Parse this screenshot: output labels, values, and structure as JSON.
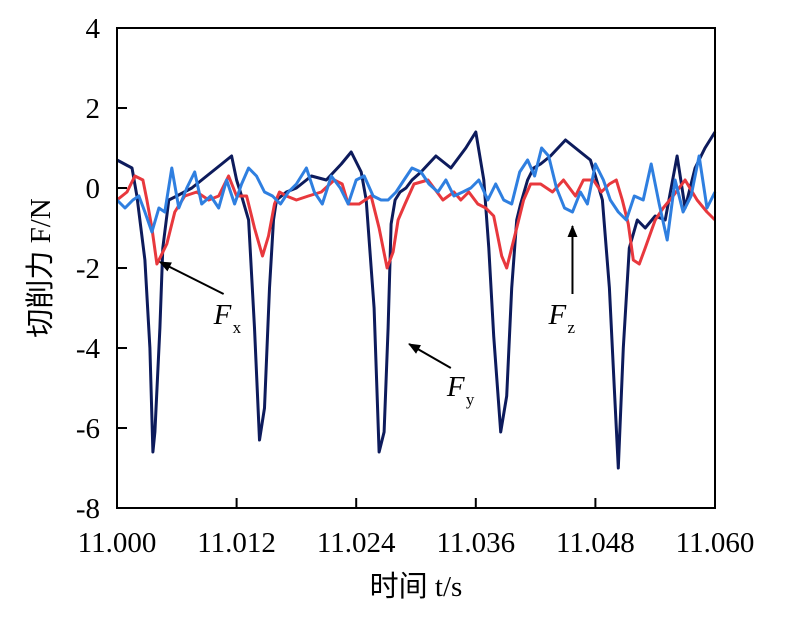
{
  "chart_data": {
    "type": "line",
    "xlabel": "时间 t/s",
    "ylabel": "切削力 F/N",
    "xlim": [
      11.0,
      11.06
    ],
    "ylim": [
      -8,
      4
    ],
    "x_ticks": [
      "11.000",
      "11.012",
      "11.024",
      "11.036",
      "11.048",
      "11.060"
    ],
    "y_ticks": [
      "4",
      "2",
      "0",
      "-2",
      "-4",
      "-6",
      "-8"
    ],
    "grid": false,
    "series": [
      {
        "name": "Fy",
        "color": "#0d1b5c",
        "x": [
          11.0,
          11.0015,
          11.002,
          11.0028,
          11.0033,
          11.0036,
          11.0038,
          11.0043,
          11.0046,
          11.0052,
          11.006,
          11.0075,
          11.009,
          11.0105,
          11.0115,
          11.012,
          11.0125,
          11.0132,
          11.0138,
          11.0143,
          11.0148,
          11.0153,
          11.0157,
          11.016,
          11.0165,
          11.017,
          11.018,
          11.0195,
          11.021,
          11.0225,
          11.0235,
          11.0245,
          11.025,
          11.0258,
          11.0263,
          11.0268,
          11.0272,
          11.0275,
          11.0279,
          11.0284,
          11.029,
          11.0296,
          11.0305,
          11.032,
          11.0335,
          11.035,
          11.036,
          11.0368,
          11.0373,
          11.0378,
          11.0385,
          11.0391,
          11.0396,
          11.0401,
          11.0405,
          11.0412,
          11.0418,
          11.0425,
          11.0435,
          11.045,
          11.0465,
          11.0475,
          11.048,
          11.0487,
          11.0494,
          11.0499,
          11.0503,
          11.0508,
          11.0514,
          11.0522,
          11.053,
          11.054,
          11.055,
          11.0562,
          11.057,
          11.058,
          11.059,
          11.06
        ],
        "values": [
          0.7,
          0.5,
          -0.2,
          -1.8,
          -4.0,
          -6.6,
          -6.1,
          -3.5,
          -1.5,
          -0.3,
          -0.2,
          0.0,
          0.3,
          0.6,
          0.8,
          0.2,
          -0.2,
          -0.8,
          -3.5,
          -6.3,
          -5.5,
          -2.5,
          -0.8,
          -0.3,
          -0.2,
          -0.1,
          0.0,
          0.3,
          0.2,
          0.6,
          0.9,
          0.4,
          -0.3,
          -3.0,
          -6.6,
          -6.1,
          -3.5,
          -0.9,
          -0.3,
          -0.1,
          0.0,
          0.2,
          0.4,
          0.8,
          0.5,
          1.0,
          1.4,
          0.2,
          -1.5,
          -3.7,
          -6.1,
          -5.2,
          -2.5,
          -0.8,
          -0.4,
          0.2,
          0.5,
          0.6,
          0.8,
          1.2,
          0.9,
          0.7,
          0.3,
          -0.3,
          -2.5,
          -5.0,
          -7.0,
          -4.0,
          -1.5,
          -0.8,
          -1.0,
          -0.7,
          -0.8,
          0.8,
          -0.5,
          0.5,
          1.0,
          1.4
        ]
      },
      {
        "name": "Fx",
        "color": "#e8383d",
        "x": [
          11.0,
          11.001,
          11.0018,
          11.0026,
          11.003,
          11.0035,
          11.004,
          11.0044,
          11.005,
          11.0058,
          11.0068,
          11.008,
          11.0092,
          11.0102,
          11.0108,
          11.0112,
          11.012,
          11.013,
          11.0138,
          11.0146,
          11.0152,
          11.0158,
          11.0163,
          11.017,
          11.018,
          11.0192,
          11.0205,
          11.0218,
          11.0226,
          11.0232,
          11.0243,
          11.0255,
          11.0263,
          11.0271,
          11.0277,
          11.0282,
          11.0289,
          11.0298,
          11.0312,
          11.0327,
          11.0338,
          11.0345,
          11.0353,
          11.0362,
          11.037,
          11.0378,
          11.0386,
          11.0391,
          11.0397,
          11.0402,
          11.0408,
          11.0415,
          11.0425,
          11.0437,
          11.0448,
          11.046,
          11.0468,
          11.0478,
          11.0486,
          11.0494,
          11.0501,
          11.0507,
          11.0513,
          11.0518,
          11.0524,
          11.053,
          11.054,
          11.0548,
          11.0558,
          11.057,
          11.0582,
          11.0592,
          11.06
        ],
        "values": [
          -0.3,
          -0.1,
          0.3,
          0.2,
          -0.3,
          -1.0,
          -1.9,
          -1.7,
          -1.4,
          -0.6,
          -0.2,
          -0.1,
          -0.3,
          -0.2,
          0.1,
          0.3,
          -0.2,
          -0.2,
          -1.0,
          -1.7,
          -1.2,
          -0.4,
          -0.1,
          -0.2,
          -0.3,
          -0.2,
          -0.1,
          0.2,
          0.1,
          -0.4,
          -0.4,
          -0.2,
          -1.0,
          -2.0,
          -1.6,
          -0.8,
          -0.4,
          0.1,
          0.2,
          -0.3,
          -0.1,
          -0.3,
          -0.1,
          -0.4,
          -0.5,
          -0.7,
          -1.7,
          -2.0,
          -1.4,
          -0.9,
          -0.3,
          0.1,
          0.1,
          -0.1,
          0.2,
          -0.2,
          0.2,
          0.2,
          -0.1,
          0.1,
          0.2,
          -0.3,
          -0.9,
          -1.8,
          -1.9,
          -1.5,
          -0.8,
          -0.5,
          -0.2,
          0.2,
          -0.3,
          -0.6,
          -0.8
        ]
      },
      {
        "name": "Fz",
        "color": "#2f7fe0",
        "x": [
          11.0,
          11.0008,
          11.0016,
          11.0022,
          11.0028,
          11.0035,
          11.0042,
          11.0048,
          11.0055,
          11.0062,
          11.007,
          11.0078,
          11.0085,
          11.0094,
          11.0102,
          11.011,
          11.0118,
          11.0125,
          11.0132,
          11.014,
          11.0148,
          11.0156,
          11.0164,
          11.0172,
          11.018,
          11.019,
          11.0198,
          11.0206,
          11.0215,
          11.0224,
          11.0232,
          11.024,
          11.0248,
          11.0257,
          11.0265,
          11.0272,
          11.028,
          11.0288,
          11.0296,
          11.0305,
          11.0313,
          11.0322,
          11.033,
          11.0338,
          11.0347,
          11.0355,
          11.0363,
          11.0372,
          11.038,
          11.0388,
          11.0396,
          11.0404,
          11.0412,
          11.0419,
          11.0426,
          11.0433,
          11.0441,
          11.0449,
          11.0457,
          11.0465,
          11.0472,
          11.048,
          11.0488,
          11.0495,
          11.0503,
          11.0511,
          11.0519,
          11.0528,
          11.0536,
          11.0544,
          11.0552,
          11.056,
          11.0568,
          11.0576,
          11.0584,
          11.0592,
          11.06
        ],
        "values": [
          -0.3,
          -0.5,
          -0.3,
          -0.2,
          -0.6,
          -1.1,
          -0.5,
          -0.6,
          0.5,
          -0.5,
          0.0,
          0.4,
          -0.4,
          -0.2,
          -0.5,
          0.2,
          -0.4,
          0.1,
          0.5,
          0.3,
          -0.1,
          -0.2,
          -0.4,
          -0.1,
          0.1,
          0.5,
          -0.1,
          -0.4,
          0.3,
          0.0,
          -0.4,
          0.2,
          0.3,
          -0.2,
          -0.3,
          -0.3,
          -0.1,
          0.2,
          0.5,
          0.4,
          0.1,
          -0.1,
          0.2,
          -0.2,
          -0.1,
          0.0,
          0.2,
          -0.3,
          0.1,
          -0.3,
          -0.4,
          0.4,
          0.7,
          0.3,
          1.0,
          0.8,
          0.0,
          -0.5,
          -0.6,
          -0.1,
          -0.4,
          0.6,
          0.2,
          -0.3,
          -0.6,
          -0.8,
          -0.2,
          -0.3,
          0.6,
          -0.4,
          -1.3,
          0.2,
          -0.6,
          -0.2,
          0.8,
          -0.5,
          -0.1
        ]
      }
    ],
    "annotations": [
      {
        "label": "F",
        "subscript": "x",
        "target": [
          11.0043,
          -1.85
        ],
        "text_at": [
          11.0109,
          -3.4
        ]
      },
      {
        "label": "F",
        "subscript": "y",
        "target": [
          11.0293,
          -3.9
        ],
        "text_at": [
          11.0343,
          -5.2
        ]
      },
      {
        "label": "F",
        "subscript": "z",
        "target": [
          11.0457,
          -0.95
        ],
        "text_at": [
          11.0445,
          -3.4
        ]
      }
    ]
  }
}
